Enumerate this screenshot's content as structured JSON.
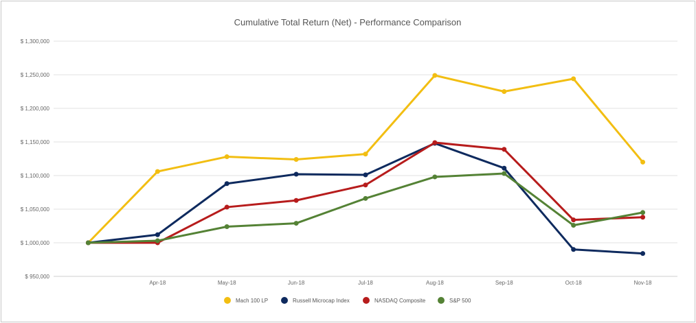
{
  "chart_data": {
    "type": "line",
    "title": "Cumulative Total Return (Net) - Performance Comparison",
    "xlabel": "",
    "ylabel": "",
    "x": [
      "",
      "Apr-18",
      "May-18",
      "Jun-18",
      "Jul-18",
      "Aug-18",
      "Sep-18",
      "Oct-18",
      "Nov-18"
    ],
    "ylim": [
      950000,
      1300000
    ],
    "yticks": [
      950000,
      1000000,
      1050000,
      1100000,
      1150000,
      1200000,
      1250000,
      1300000
    ],
    "ytick_labels": [
      "$ 950,000",
      "$ 1,000,000",
      "$ 1,050,000",
      "$ 1,100,000",
      "$ 1,150,000",
      "$ 1,200,000",
      "$ 1,250,000",
      "$ 1,300,000"
    ],
    "grid": true,
    "legend_position": "bottom",
    "series": [
      {
        "name": "Mach 100 LP",
        "color": "#F2BE12",
        "values": [
          1000000,
          1106000,
          1128000,
          1124000,
          1132000,
          1249000,
          1225000,
          1244000,
          1120000
        ]
      },
      {
        "name": "Russell Microcap Index",
        "color": "#0E2A5E",
        "values": [
          1000000,
          1012000,
          1088000,
          1102000,
          1101000,
          1148000,
          1111000,
          990000,
          984000
        ]
      },
      {
        "name": "NASDAQ Composite",
        "color": "#B71C1C",
        "values": [
          1000000,
          1000000,
          1053000,
          1063000,
          1086000,
          1149000,
          1139000,
          1034000,
          1038000
        ]
      },
      {
        "name": "S&P 500",
        "color": "#548235",
        "values": [
          1000000,
          1003000,
          1024000,
          1029000,
          1066000,
          1098000,
          1103000,
          1026000,
          1045000
        ]
      }
    ]
  }
}
